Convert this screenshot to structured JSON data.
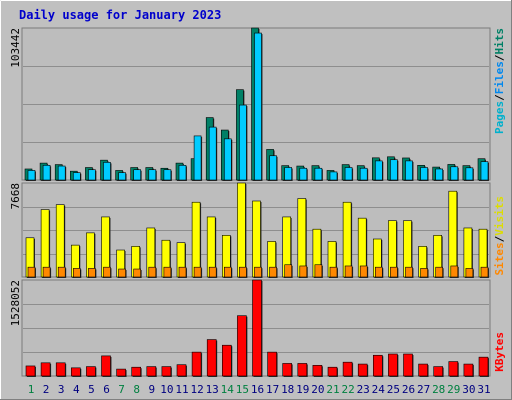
{
  "title": "Daily usage for January 2023",
  "colors": {
    "background": "#c0c0c0",
    "panel": "#bdbdbd",
    "title": "#0000cc",
    "hits": "#008066",
    "files": "#00ccff",
    "pages": "#00b0cc",
    "sites": "#ff8800",
    "visits": "#ffff00",
    "kbytes": "#ff0000",
    "day_weekday": "#000080",
    "day_weekend": "#008040"
  },
  "chart_data": [
    {
      "type": "bar",
      "panel": "hits-files-pages",
      "y_axis_label": "103442",
      "side_label": {
        "pages": "Pages",
        "sep1": "/",
        "files": "Files",
        "sep2": "/",
        "hits": "Hits"
      },
      "ylim": [
        0,
        103442
      ],
      "categories": [
        "1",
        "2",
        "3",
        "4",
        "5",
        "6",
        "7",
        "8",
        "9",
        "10",
        "11",
        "12",
        "13",
        "14",
        "15",
        "16",
        "17",
        "18",
        "19",
        "20",
        "21",
        "22",
        "23",
        "24",
        "25",
        "26",
        "27",
        "28",
        "29",
        "30",
        "31"
      ],
      "series": [
        {
          "key": "hits",
          "values": [
            7500,
            11500,
            10500,
            6000,
            8500,
            13500,
            6500,
            8500,
            8500,
            8000,
            11500,
            14500,
            42500,
            34000,
            61500,
            103442,
            20800,
            9800,
            9500,
            9800,
            6500,
            10500,
            9800,
            15100,
            15800,
            15000,
            10000,
            8800,
            10600,
            9800,
            14500
          ]
        },
        {
          "key": "files",
          "values": [
            6500,
            10000,
            9500,
            5000,
            7000,
            12000,
            5000,
            7000,
            7000,
            7000,
            10000,
            30000,
            36000,
            28000,
            51000,
            100000,
            16500,
            8500,
            8000,
            8000,
            5500,
            8500,
            8000,
            13000,
            13800,
            13000,
            8500,
            7500,
            9000,
            8300,
            12500
          ]
        }
      ]
    },
    {
      "type": "bar",
      "panel": "visits-sites",
      "y_axis_label": "7668",
      "side_label": {
        "sites": "Sites",
        "sep": "/",
        "visits": "Visits"
      },
      "ylim": [
        0,
        7668
      ],
      "categories": [
        "1",
        "2",
        "3",
        "4",
        "5",
        "6",
        "7",
        "8",
        "9",
        "10",
        "11",
        "12",
        "13",
        "14",
        "15",
        "16",
        "17",
        "18",
        "19",
        "20",
        "21",
        "22",
        "23",
        "24",
        "25",
        "26",
        "27",
        "28",
        "29",
        "30",
        "31"
      ],
      "series": [
        {
          "key": "visits",
          "values": [
            3200,
            5500,
            5900,
            2600,
            3600,
            4900,
            2200,
            2500,
            4000,
            3000,
            2800,
            6100,
            4900,
            3400,
            7668,
            6200,
            2900,
            4900,
            6400,
            3900,
            2900,
            6100,
            4800,
            3100,
            4600,
            4600,
            2500,
            3400,
            7000,
            4000,
            3900
          ]
        },
        {
          "key": "sites",
          "values": [
            800,
            800,
            800,
            700,
            700,
            800,
            650,
            650,
            800,
            800,
            800,
            800,
            800,
            800,
            800,
            800,
            800,
            1000,
            900,
            1000,
            800,
            900,
            900,
            800,
            800,
            800,
            700,
            800,
            900,
            700,
            800
          ]
        }
      ]
    },
    {
      "type": "bar",
      "panel": "kbytes",
      "y_axis_label": "1528052",
      "side_label": {
        "kbytes": "KBytes"
      },
      "ylim": [
        0,
        1528052
      ],
      "categories": [
        "1",
        "2",
        "3",
        "4",
        "5",
        "6",
        "7",
        "8",
        "9",
        "10",
        "11",
        "12",
        "13",
        "14",
        "15",
        "16",
        "17",
        "18",
        "19",
        "20",
        "21",
        "22",
        "23",
        "24",
        "25",
        "26",
        "27",
        "28",
        "29",
        "30",
        "31"
      ],
      "series": [
        {
          "key": "kbytes",
          "values": [
            160000,
            210000,
            210000,
            130000,
            150000,
            320000,
            110000,
            140000,
            150000,
            150000,
            180000,
            380000,
            580000,
            490000,
            960000,
            1528052,
            380000,
            200000,
            200000,
            170000,
            140000,
            220000,
            190000,
            330000,
            350000,
            350000,
            190000,
            150000,
            230000,
            190000,
            300000
          ]
        }
      ]
    }
  ],
  "weekend_days": [
    1,
    7,
    8,
    14,
    15,
    21,
    22,
    28,
    29
  ]
}
